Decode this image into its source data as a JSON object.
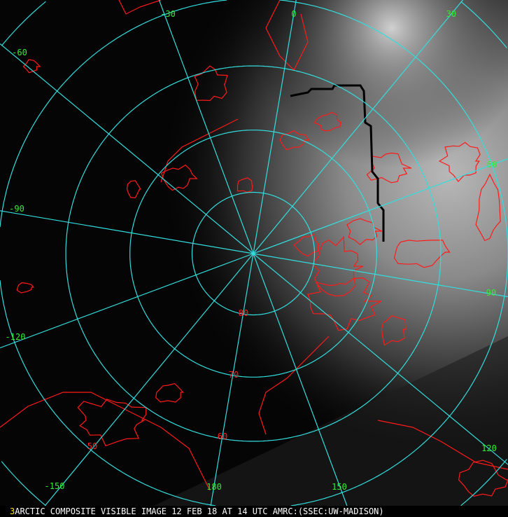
{
  "caption": {
    "frame_number": "3",
    "text": "ARCTIC COMPOSITE VISIBLE IMAGE 12 FEB 18 AT 14 UTC AMRC:(SSEC:UW-MADISON)"
  },
  "map": {
    "projection": "polar stereographic",
    "center": "North Pole",
    "grid_color": "#33dddd",
    "coastline_color": "#ff1a1a",
    "longitude_label_color": "#33ee33",
    "latitude_label_color": "#ff2020",
    "meridians": [
      {
        "lon": 0,
        "label": "0"
      },
      {
        "lon": 30,
        "label": "30"
      },
      {
        "lon": 60,
        "label": "60"
      },
      {
        "lon": 90,
        "label": "90"
      },
      {
        "lon": 120,
        "label": "120"
      },
      {
        "lon": 150,
        "label": "150"
      },
      {
        "lon": 180,
        "label": "180"
      },
      {
        "lon": -150,
        "label": "-150"
      },
      {
        "lon": -120,
        "label": "-120"
      },
      {
        "lon": -90,
        "label": "-90"
      },
      {
        "lon": -60,
        "label": "-60"
      },
      {
        "lon": -30,
        "label": "-30"
      }
    ],
    "parallels": [
      {
        "lat": 80,
        "label": "80"
      },
      {
        "lat": 70,
        "label": "70"
      },
      {
        "lat": 60,
        "label": "60"
      },
      {
        "lat": 50,
        "label": "50"
      },
      {
        "lat": 40,
        "label": ""
      },
      {
        "lat": 30,
        "label": ""
      }
    ]
  }
}
